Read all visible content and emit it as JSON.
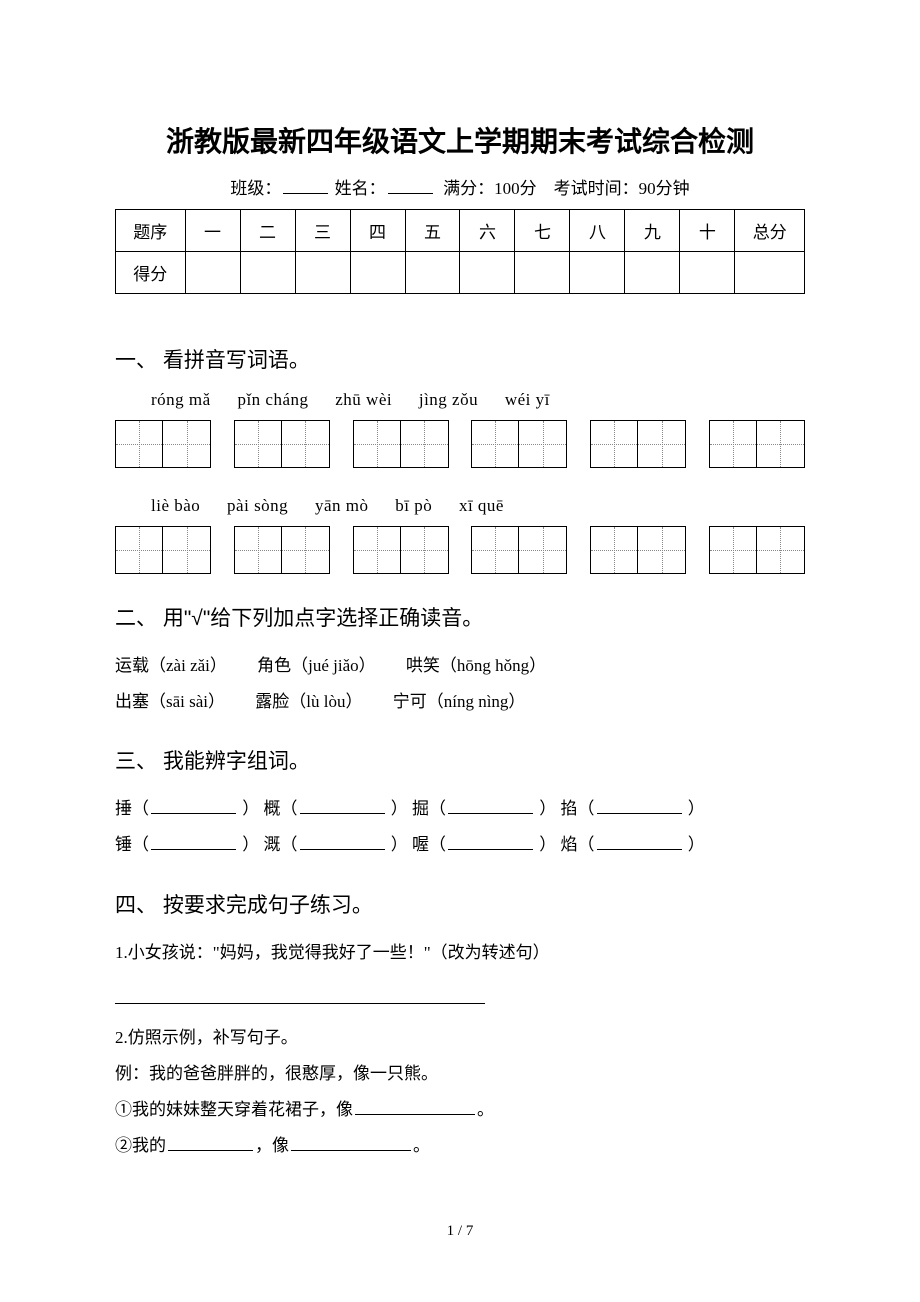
{
  "title": "浙教版最新四年级语文上学期期末考试综合检测",
  "info": {
    "class_label": "班级：",
    "name_label": "姓名：",
    "full_score_label": "满分：100分",
    "time_label": "考试时间：90分钟"
  },
  "score_table": {
    "row1_label": "题序",
    "row2_label": "得分",
    "cols": [
      "一",
      "二",
      "三",
      "四",
      "五",
      "六",
      "七",
      "八",
      "九",
      "十"
    ],
    "total_label": "总分"
  },
  "section1": {
    "title": "一、 看拼音写词语。",
    "pinyin_row1": [
      "róng mǎ",
      "pǐn cháng",
      "zhū wèi",
      "jìng zǒu",
      "wéi yī"
    ],
    "pinyin_row2": [
      "liè bào",
      "pài sòng",
      "yān mò",
      "bī pò",
      "xī quē"
    ]
  },
  "section2": {
    "title": "二、 用\"√\"给下列加点字选择正确读音。",
    "line1a": "运载（zài zǎi）",
    "line1b": "角色（jué jiǎo）",
    "line1c": "哄笑（hōng hǒng）",
    "line2a": "出塞（sāi sài）",
    "line2b": "露脸（lù lòu）",
    "line2c": "宁可（níng nìng）"
  },
  "section3": {
    "title": "三、 我能辨字组词。",
    "row1": [
      "捶（",
      "） 概（",
      "） 掘（",
      "） 掐（",
      "）"
    ],
    "row2": [
      "锤（",
      "） 溉（",
      "） 喔（",
      "） 焰（",
      "）"
    ]
  },
  "section4": {
    "title": "四、 按要求完成句子练习。",
    "q1": "1.小女孩说：\"妈妈，我觉得我好了一些！\"（改为转述句）",
    "q2": "2.仿照示例，补写句子。",
    "example": "例：我的爸爸胖胖的，很憨厚，像一只熊。",
    "item1_pre": "①我的妹妹整天穿着花裙子，像",
    "item1_post": "。",
    "item2_pre": "②我的",
    "item2_mid": "，像",
    "item2_post": "。"
  },
  "page_num": "1 / 7",
  "colors": {
    "text": "#000000",
    "bg": "#ffffff",
    "border": "#000000",
    "dotted": "#888888"
  }
}
